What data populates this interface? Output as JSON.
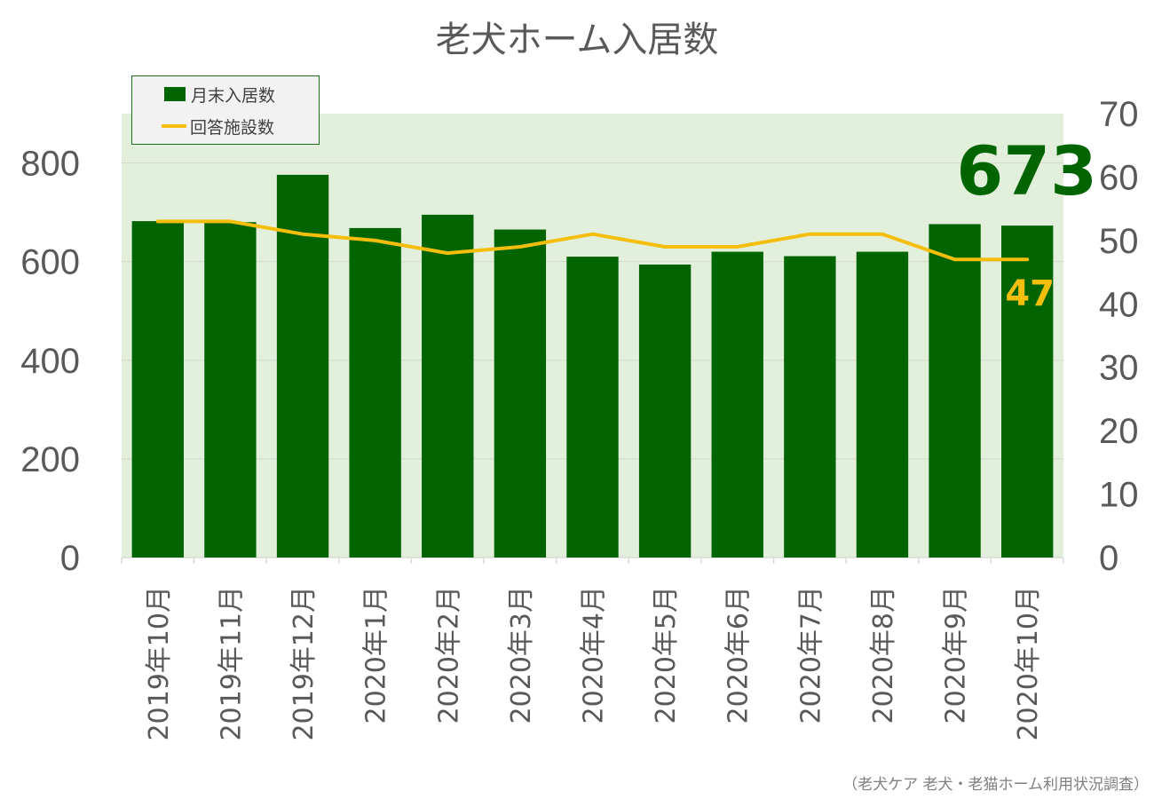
{
  "title": "老犬ホーム入居数",
  "legend": {
    "bar_label": "月末入居数",
    "line_label": "回答施設数"
  },
  "source": "（老犬ケア 老犬・老猫ホーム利用状況調査）",
  "colors": {
    "bar": "#006400",
    "line": "#f5be0b",
    "plot_background": "#e2efda",
    "highlight_bar_value": "#006400",
    "highlight_line_value": "#f5be0b"
  },
  "chart_data": {
    "type": "bar",
    "title": "老犬ホーム入居数",
    "categories": [
      "2019年10月",
      "2019年11月",
      "2019年12月",
      "2020年1月",
      "2020年2月",
      "2020年3月",
      "2020年4月",
      "2020年5月",
      "2020年6月",
      "2020年7月",
      "2020年8月",
      "2020年9月",
      "2020年10月"
    ],
    "series": [
      {
        "name": "月末入居数",
        "type": "bar",
        "axis": "left",
        "values": [
          682,
          680,
          776,
          668,
          695,
          665,
          610,
          594,
          620,
          611,
          620,
          676,
          673
        ]
      },
      {
        "name": "回答施設数",
        "type": "line",
        "axis": "right",
        "values": [
          53,
          53,
          51,
          50,
          48,
          49,
          51,
          49,
          49,
          51,
          51,
          47,
          47
        ]
      }
    ],
    "y_left": {
      "min": 0,
      "max": 900,
      "ticks": [
        0,
        200,
        400,
        600,
        800
      ]
    },
    "y_right": {
      "min": 0,
      "max": 70,
      "ticks": [
        0,
        10,
        20,
        30,
        40,
        50,
        60,
        70
      ]
    },
    "annotations": [
      {
        "text": "673",
        "series": "月末入居数",
        "index": 12
      },
      {
        "text": "47",
        "series": "回答施設数",
        "index": 12
      }
    ],
    "grid": true,
    "legend_position": "top-left"
  }
}
